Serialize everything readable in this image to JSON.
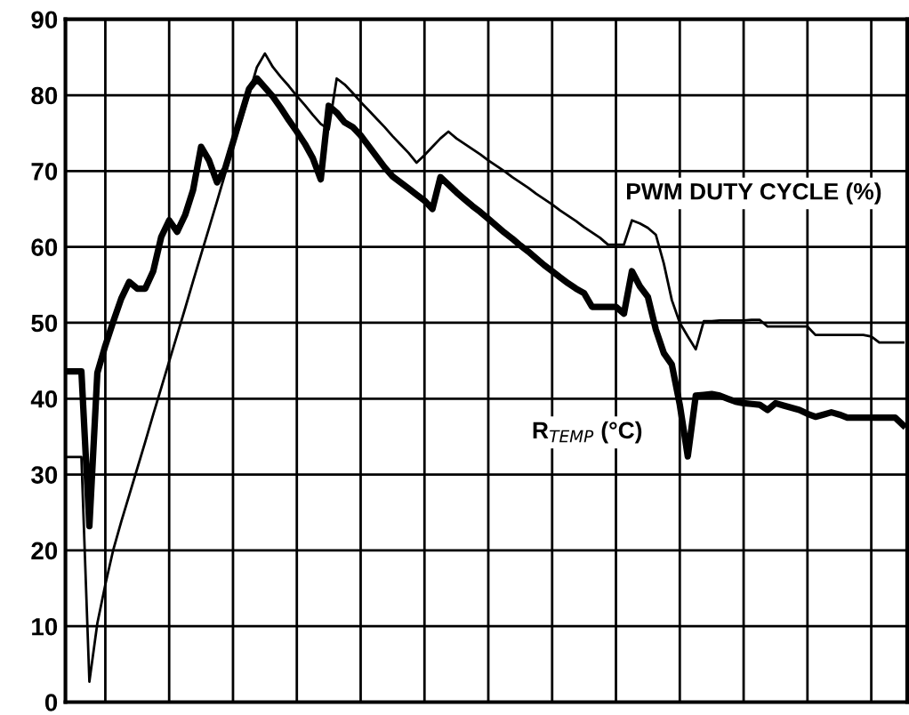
{
  "chart_data": {
    "type": "line",
    "categories": [
      null,
      null,
      null,
      null,
      null,
      null,
      null,
      null,
      null,
      null,
      null,
      null,
      null,
      null,
      null,
      null,
      null,
      null,
      null,
      null,
      null,
      null,
      null,
      null,
      null,
      null,
      null,
      null,
      null,
      null,
      null,
      null,
      null,
      null,
      null,
      null,
      null,
      null,
      null,
      null,
      null,
      null,
      null,
      null,
      null,
      null,
      null,
      null,
      null,
      null,
      null,
      null,
      null,
      null,
      null,
      null,
      null,
      null,
      null,
      null,
      null,
      null,
      null,
      null,
      null,
      null,
      null,
      null,
      null,
      null,
      null,
      null,
      null,
      null,
      null,
      null,
      null,
      null,
      null,
      null,
      null,
      null,
      null,
      null,
      null,
      null,
      null,
      null,
      null,
      null,
      null,
      null,
      null,
      null,
      null,
      null,
      null,
      null,
      null,
      null,
      null,
      null,
      null,
      null,
      null,
      null
    ],
    "ylim": [
      0,
      90
    ],
    "yticks": [
      0,
      10,
      20,
      30,
      40,
      50,
      60,
      70,
      80,
      90
    ],
    "grid": true,
    "tick_labels": "y",
    "series": [
      {
        "name": "PWM DUTY CYCLE (%)",
        "color": "#000000",
        "values": [
          32.3,
          32.3,
          32.3,
          2.7,
          10.4,
          15.5,
          20.1,
          23.8,
          27.3,
          30.8,
          34.3,
          37.9,
          41.4,
          44.9,
          48.4,
          51.9,
          55.5,
          59.0,
          62.5,
          66.0,
          69.6,
          73.1,
          76.6,
          80.1,
          83.7,
          85.5,
          83.7,
          82.4,
          81.2,
          79.9,
          78.7,
          77.4,
          76.2,
          75.5,
          82.2,
          81.4,
          80.3,
          79.1,
          78.0,
          76.9,
          75.8,
          74.6,
          73.5,
          72.4,
          71.1,
          72.1,
          73.2,
          74.3,
          75.2,
          74.3,
          73.6,
          72.9,
          72.2,
          71.4,
          70.7,
          70.0,
          69.2,
          68.5,
          67.8,
          67.0,
          66.3,
          65.6,
          64.8,
          64.1,
          63.4,
          62.6,
          61.9,
          61.2,
          60.3,
          60.3,
          60.3,
          63.5,
          63.1,
          62.5,
          61.6,
          57.8,
          53.0,
          50.0,
          48.2,
          46.5,
          50.2,
          50.2,
          50.3,
          50.3,
          50.3,
          50.3,
          50.4,
          50.4,
          49.5,
          49.5,
          49.5,
          49.5,
          49.5,
          49.5,
          48.4,
          48.4,
          48.4,
          48.4,
          48.4,
          48.4,
          48.4,
          48.2,
          47.4,
          47.4,
          47.4,
          47.4
        ]
      },
      {
        "name": "R$_{TEMP}$ (°C)",
        "color": "#000000",
        "values": [
          43.6,
          43.6,
          43.6,
          23.2,
          43.4,
          47.0,
          50.2,
          53.2,
          55.4,
          54.5,
          54.5,
          56.8,
          61.3,
          63.5,
          62.0,
          64.2,
          67.5,
          73.2,
          71.4,
          68.5,
          70.3,
          73.8,
          77.3,
          80.8,
          82.2,
          81.0,
          79.8,
          78.3,
          76.7,
          75.2,
          73.6,
          71.7,
          68.9,
          78.6,
          77.7,
          76.4,
          75.8,
          74.7,
          73.3,
          71.9,
          70.5,
          69.3,
          68.5,
          67.7,
          66.9,
          66.1,
          65.0,
          69.2,
          68.2,
          67.2,
          66.3,
          65.4,
          64.6,
          63.7,
          62.8,
          61.9,
          61.1,
          60.2,
          59.4,
          58.5,
          57.6,
          56.8,
          56.0,
          55.2,
          54.5,
          53.9,
          52.1,
          52.1,
          52.1,
          52.1,
          51.2,
          56.8,
          54.8,
          53.4,
          49.1,
          46.0,
          44.5,
          39.2,
          32.4,
          40.4,
          40.5,
          40.6,
          40.4,
          40.0,
          39.6,
          39.4,
          39.3,
          39.2,
          38.5,
          39.4,
          39.1,
          38.8,
          38.5,
          38.0,
          37.6,
          37.9,
          38.2,
          37.9,
          37.5,
          37.5,
          37.5,
          37.5,
          37.5,
          37.5,
          37.5,
          36.5
        ]
      }
    ]
  }
}
